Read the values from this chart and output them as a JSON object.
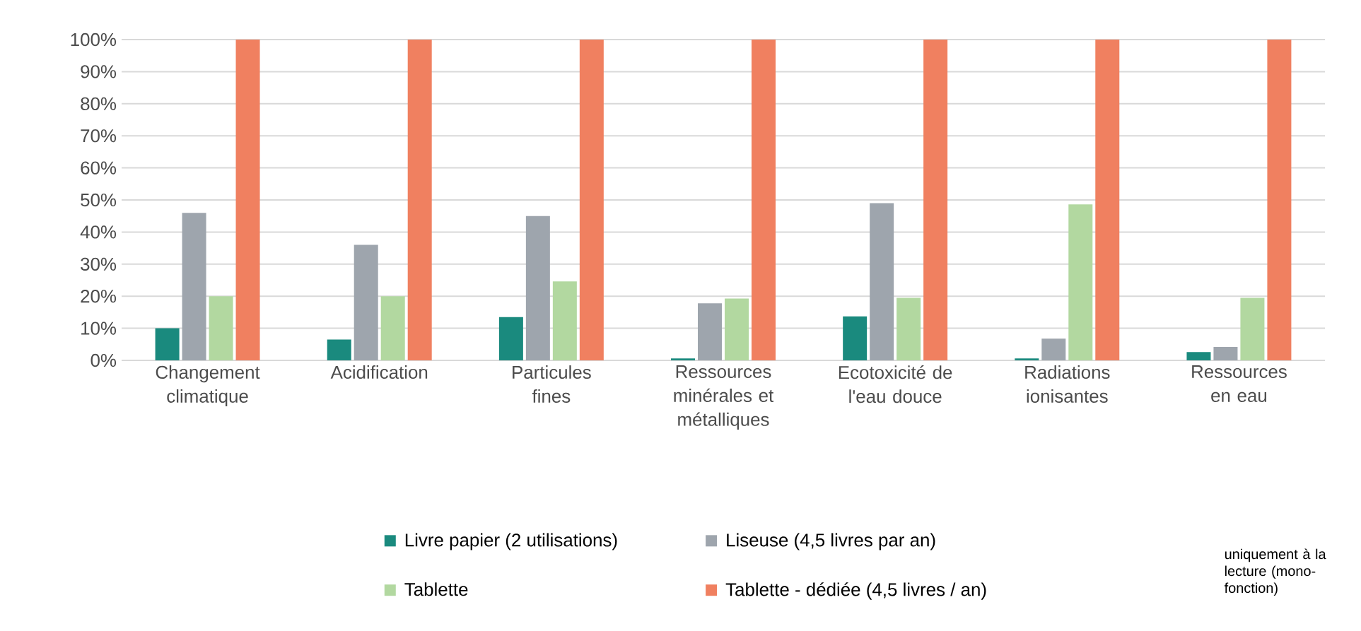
{
  "chart_data": {
    "type": "bar",
    "categories": [
      "Changement climatique",
      "Acidification",
      "Particules fines",
      "Ressources minérales et métalliques",
      "Ecotoxicité de l'eau douce",
      "Radiations ionisantes",
      "Ressources en eau"
    ],
    "series": [
      {
        "name": "Livre papier (2 utilisations)",
        "color": "#1a8a7e",
        "values": [
          10,
          6.5,
          13.5,
          0.6,
          13.7,
          0.6,
          2.6
        ]
      },
      {
        "name": "Liseuse (4,5 livres par an)",
        "color": "#9ea5ad",
        "values": [
          46,
          36,
          45,
          17.8,
          49,
          6.8,
          4.2
        ]
      },
      {
        "name": "Tablette",
        "color": "#b2d8a0",
        "values": [
          20,
          20,
          24.6,
          19.3,
          19.5,
          48.6,
          19.5
        ]
      },
      {
        "name": "Tablette - dédiée (4,5 livres / an)",
        "color": "#f08060",
        "values": [
          100,
          100,
          100,
          100,
          100,
          100,
          100
        ]
      }
    ],
    "ylim": [
      0,
      100
    ],
    "yticks": [
      {
        "value": 0,
        "label": "0%"
      },
      {
        "value": 10,
        "label": "10%"
      },
      {
        "value": 20,
        "label": "20%"
      },
      {
        "value": 30,
        "label": "30%"
      },
      {
        "value": 40,
        "label": "40%"
      },
      {
        "value": 50,
        "label": "50%"
      },
      {
        "value": 60,
        "label": "60%"
      },
      {
        "value": 70,
        "label": "70%"
      },
      {
        "value": 80,
        "label": "80%"
      },
      {
        "value": 90,
        "label": "90%"
      },
      {
        "value": 100,
        "label": "100%"
      }
    ],
    "grid": "y",
    "legend": "bottom",
    "annotations": [
      "uniquement à la lecture (mono-fonction)"
    ]
  }
}
